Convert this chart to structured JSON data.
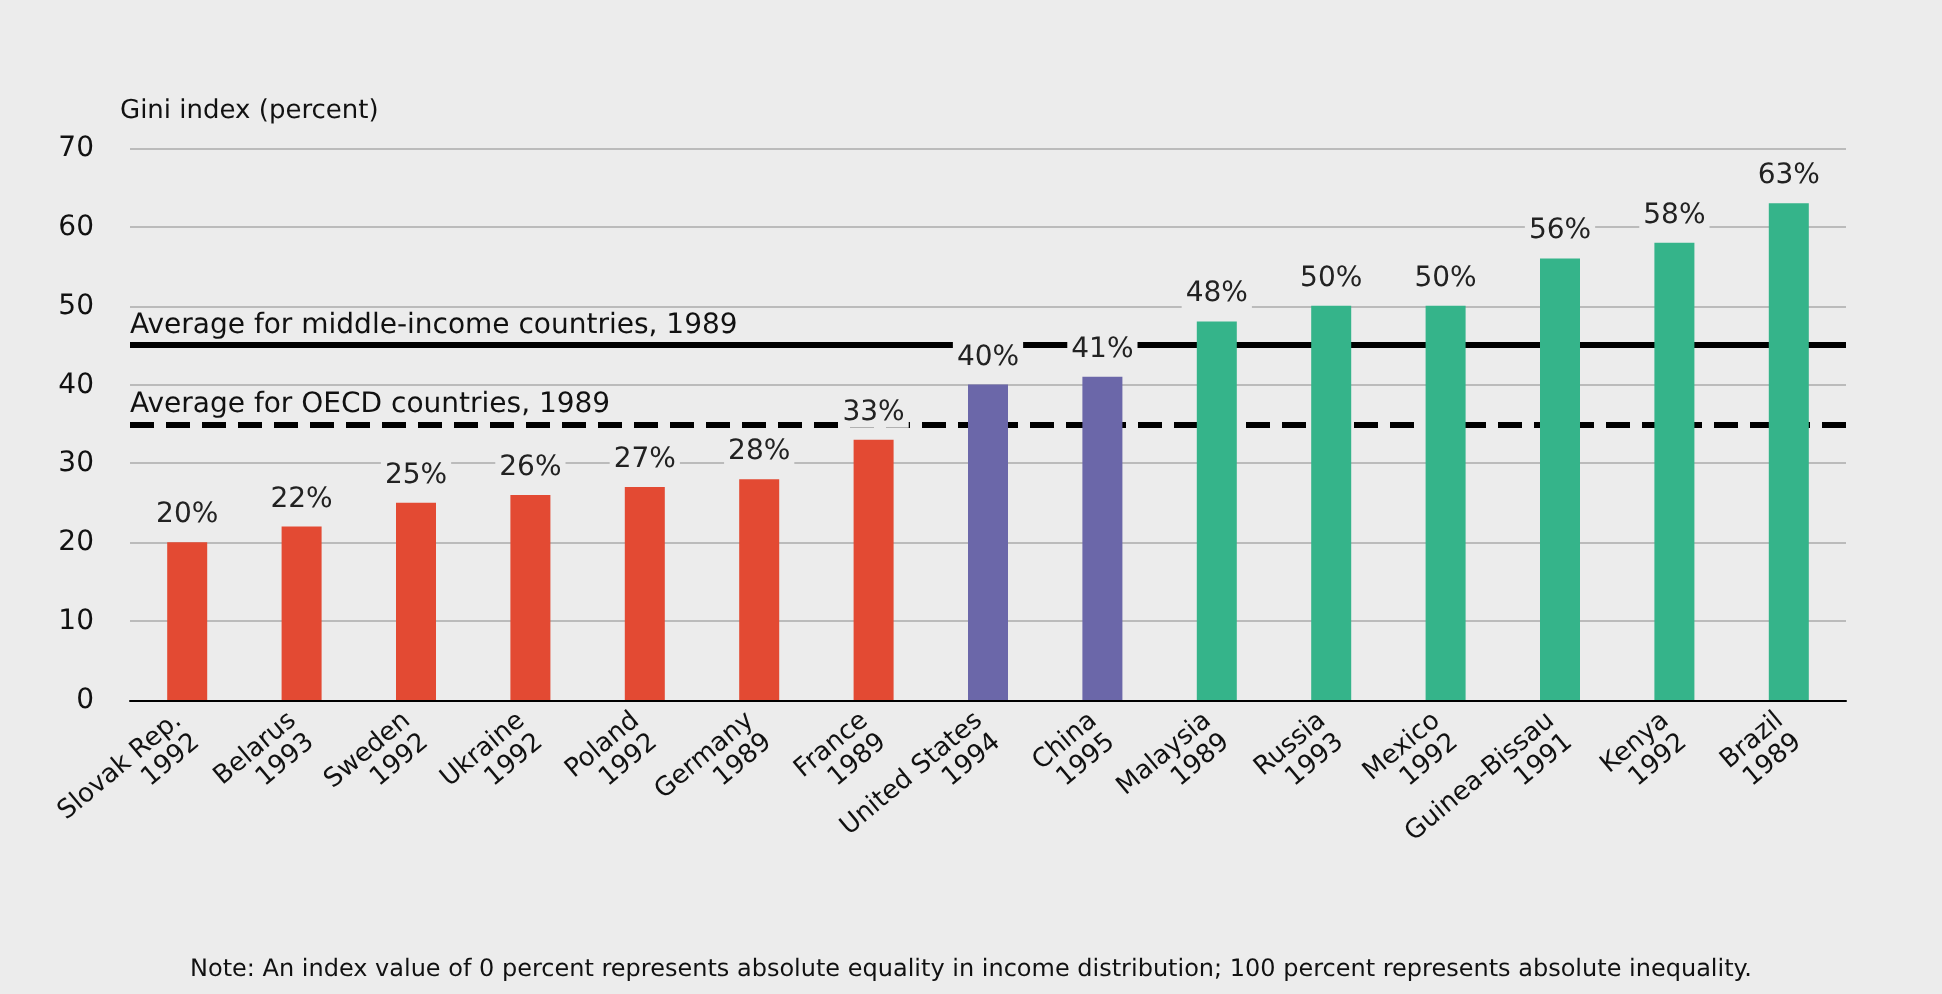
{
  "chart_data": {
    "type": "bar",
    "ylabel": "Gini index (percent)",
    "categories": [
      "Slovak Rep.\n1992",
      "Belarus\n1993",
      "Sweden\n1992",
      "Ukraine\n1992",
      "Poland\n1992",
      "Germany\n1989",
      "France\n1989",
      "United States\n1994",
      "China\n1995",
      "Malaysia\n1989",
      "Russia\n1993",
      "Mexico\n1992",
      "Guinea-Bissau\n1991",
      "Kenya\n1992",
      "Brazil\n1989"
    ],
    "values": [
      20,
      22,
      25,
      26,
      27,
      28,
      33,
      40,
      41,
      48,
      50,
      50,
      56,
      58,
      63
    ],
    "colors": [
      "#e34a33",
      "#e34a33",
      "#e34a33",
      "#e34a33",
      "#e34a33",
      "#e34a33",
      "#e34a33",
      "#6b67a9",
      "#6b67a9",
      "#35b48a",
      "#35b48a",
      "#35b48a",
      "#35b48a",
      "#35b48a",
      "#35b48a"
    ],
    "value_labels": [
      "20%",
      "22%",
      "25%",
      "26%",
      "27%",
      "28%",
      "33%",
      "40%",
      "41%",
      "48%",
      "50%",
      "50%",
      "56%",
      "58%",
      "63%"
    ],
    "ylim": [
      0,
      70
    ],
    "yticks": [
      0,
      10,
      20,
      30,
      40,
      50,
      60,
      70
    ],
    "grid": "y",
    "ref_lines": [
      {
        "axis": "y",
        "value": 45,
        "label": "Average for middle-income countries, 1989",
        "color": "#000000",
        "line_style": "solid"
      },
      {
        "axis": "y",
        "value": 35,
        "label": "Average for OECD countries, 1989",
        "color": "#000000",
        "line_style": "dashed"
      }
    ],
    "annotations": [
      "Note: An index value of 0 percent represents absolute equality in income distribution; 100 percent represents absolute inequality."
    ]
  }
}
